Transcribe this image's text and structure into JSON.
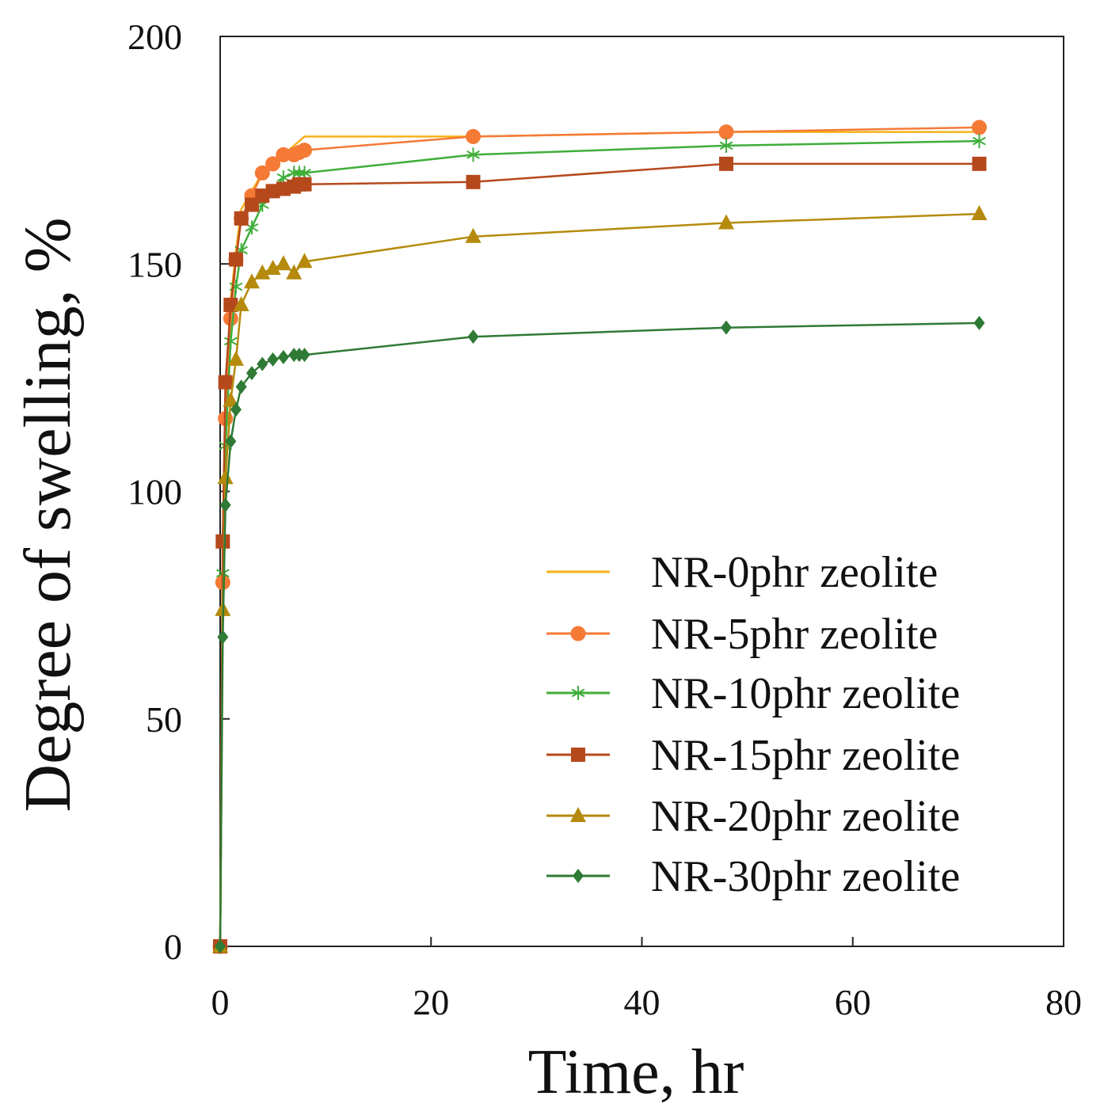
{
  "chart_data": {
    "type": "line",
    "title": "",
    "xlabel": "Time, hr",
    "ylabel": "Degree of swelling, %",
    "xlim": [
      0,
      80
    ],
    "ylim": [
      0,
      200
    ],
    "xticks": [
      0,
      20,
      40,
      60,
      80
    ],
    "yticks": [
      0,
      50,
      100,
      150,
      200
    ],
    "xtick_labels": [
      "0",
      "20",
      "40",
      "60",
      "80"
    ],
    "ytick_labels": [
      "0",
      "50",
      "100",
      "150",
      "200"
    ],
    "grid": false,
    "legend_position": "bottom-right",
    "series": [
      {
        "name": "NR-0phr zeolite",
        "color": "#f5b21b",
        "marker": "none",
        "x": [
          0,
          0.25,
          0.5,
          1,
          1.5,
          2,
          3,
          4,
          5,
          6,
          7,
          8,
          24,
          48,
          72
        ],
        "y": [
          0,
          90,
          118,
          142,
          153,
          162,
          166,
          170,
          172,
          174,
          176,
          178,
          178,
          179,
          179
        ]
      },
      {
        "name": "NR-5phr zeolite",
        "color": "#f47a36",
        "marker": "circle",
        "x": [
          0,
          0.25,
          0.5,
          1,
          1.5,
          2,
          3,
          4,
          5,
          6,
          7,
          7.5,
          8,
          24,
          48,
          72
        ],
        "y": [
          0,
          80,
          116,
          138,
          151,
          160,
          165,
          170,
          172,
          174,
          174,
          174.5,
          175,
          178,
          179,
          180
        ]
      },
      {
        "name": "NR-10phr zeolite",
        "color": "#3fae3a",
        "marker": "asterisk",
        "x": [
          0,
          0.25,
          0.5,
          1,
          1.5,
          2,
          3,
          4,
          5,
          6,
          7,
          7.5,
          8,
          24,
          48,
          72
        ],
        "y": [
          0,
          82,
          110,
          133,
          145,
          153,
          158,
          163,
          166,
          169,
          170,
          170,
          170,
          174,
          176,
          177
        ]
      },
      {
        "name": "NR-15phr zeolite",
        "color": "#b5491c",
        "marker": "square",
        "x": [
          0,
          0.25,
          0.5,
          1,
          1.5,
          2,
          3,
          4,
          5,
          6,
          7,
          7.5,
          8,
          24,
          48,
          72
        ],
        "y": [
          0,
          89,
          124,
          141,
          151,
          160,
          163,
          165,
          166,
          166.5,
          167,
          167.5,
          167.5,
          168,
          172,
          172
        ]
      },
      {
        "name": "NR-20phr zeolite",
        "color": "#b58a0d",
        "marker": "triangle",
        "x": [
          0,
          0.25,
          0.5,
          1,
          1.5,
          2,
          3,
          4,
          5,
          6,
          7,
          8,
          24,
          48,
          72
        ],
        "y": [
          0,
          74,
          103,
          120,
          129,
          141,
          146,
          148,
          149,
          150,
          148,
          150.5,
          156,
          159,
          161
        ]
      },
      {
        "name": "NR-30phr zeolite",
        "color": "#2f7a35",
        "marker": "diamond",
        "x": [
          0,
          0.25,
          0.5,
          1,
          1.5,
          2,
          3,
          4,
          5,
          6,
          7,
          7.5,
          8,
          24,
          48,
          72
        ],
        "y": [
          0,
          68,
          97,
          111,
          118,
          123,
          126,
          128,
          129,
          129.5,
          130,
          130,
          130,
          134,
          136,
          137
        ]
      }
    ]
  }
}
